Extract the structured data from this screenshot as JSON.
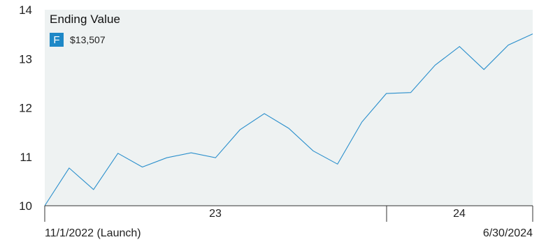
{
  "chart_data": {
    "type": "line",
    "title": "Ending Value",
    "legend_position": "top-left",
    "grid": false,
    "background": "#eef2f2",
    "line_color": "#2a8fcc",
    "badge_color": "#1e88c7",
    "series": [
      {
        "badge": "F",
        "value_label": "$13,507",
        "values": [
          10.0,
          10.77,
          10.33,
          11.07,
          10.79,
          10.98,
          11.08,
          10.98,
          11.55,
          11.88,
          11.58,
          11.12,
          10.85,
          11.71,
          12.29,
          12.31,
          12.87,
          13.25,
          12.78,
          13.28,
          13.507
        ]
      }
    ],
    "y_ticks": [
      "10",
      "11",
      "12",
      "13",
      "14"
    ],
    "ylim": [
      10,
      14
    ],
    "x_year_labels": [
      "23",
      "24"
    ],
    "x_start_label": "11/1/2022 (Launch)",
    "x_end_label": "6/30/2024"
  }
}
